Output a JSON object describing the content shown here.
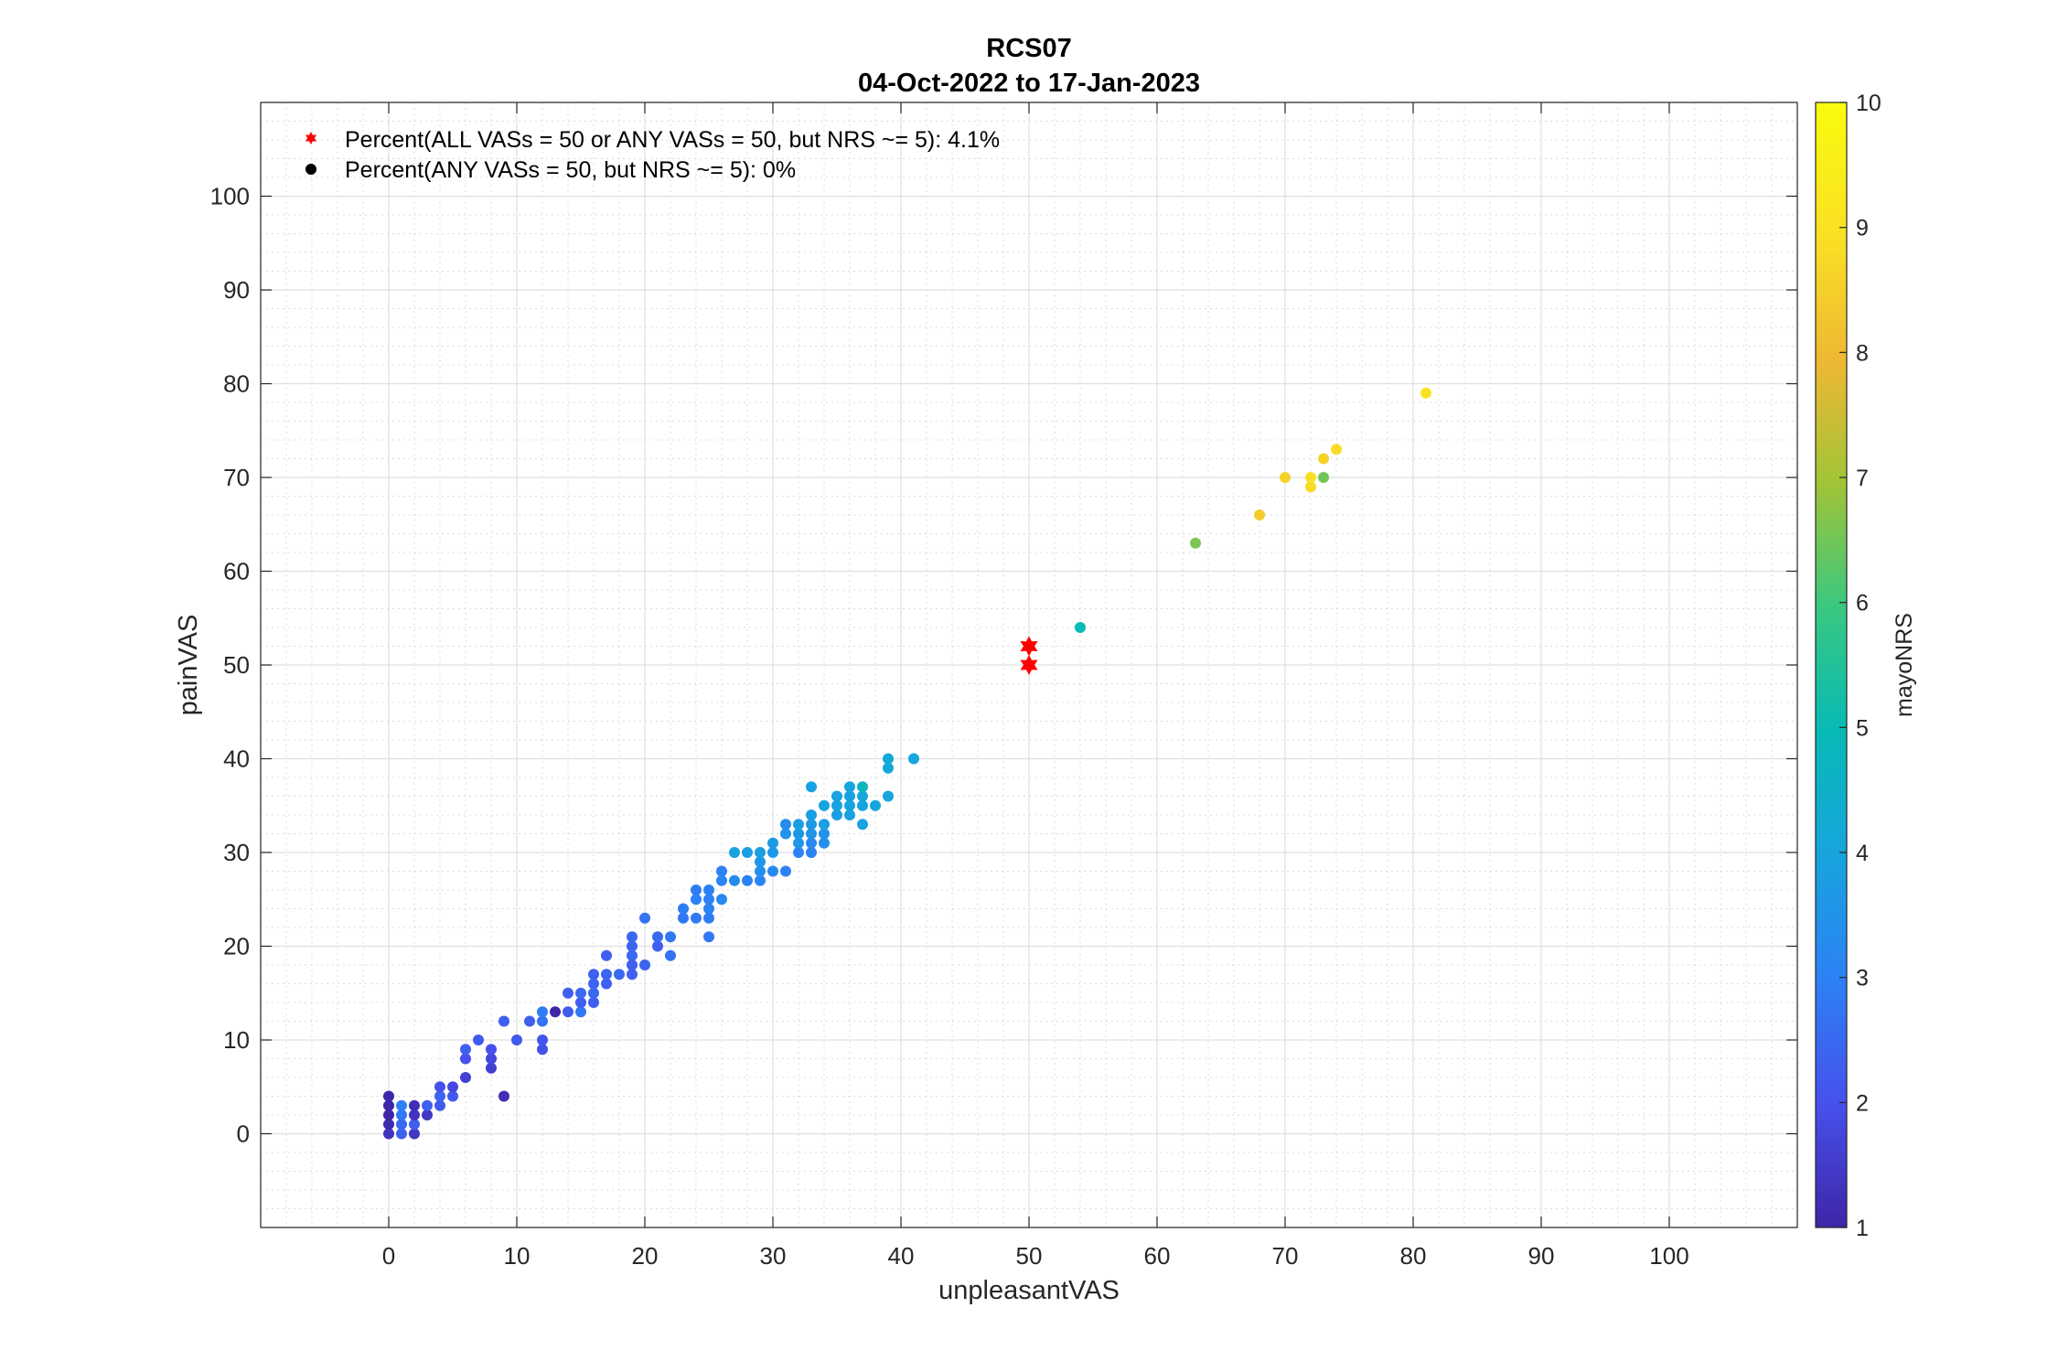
{
  "chart_data": {
    "type": "scatter",
    "title": "RCS07",
    "subtitle": "04-Oct-2022 to 17-Jan-2023",
    "xlabel": "unpleasantVAS",
    "ylabel": "painVAS",
    "xlim": [
      -10,
      110
    ],
    "ylim": [
      -10,
      110
    ],
    "xticks": [
      0,
      10,
      20,
      30,
      40,
      50,
      60,
      70,
      80,
      90,
      100
    ],
    "yticks": [
      0,
      10,
      20,
      30,
      40,
      50,
      60,
      70,
      80,
      90,
      100
    ],
    "grid": true,
    "minor_grid": true,
    "legend_position": "top-left",
    "legend": [
      {
        "label": "Percent(ALL VASs = 50 or ANY VASs = 50, but NRS ~= 5): 4.1%",
        "marker": "star",
        "color": "#ff0000"
      },
      {
        "label": "Percent(ANY VASs = 50, but NRS ~= 5): 0%",
        "marker": "dot",
        "color": "#000000"
      }
    ],
    "colorbar": {
      "label": "mayoNRS",
      "range": [
        1,
        10
      ],
      "ticks": [
        1,
        2,
        3,
        4,
        5,
        6,
        7,
        8,
        9,
        10
      ],
      "colormap": "parula",
      "position": "right"
    },
    "series": [
      {
        "marker": "dot",
        "colored_by": "mayoNRS",
        "points": [
          [
            0,
            0,
            1.3
          ],
          [
            0,
            1,
            1.1
          ],
          [
            0,
            2,
            1.0
          ],
          [
            0,
            3,
            1.0
          ],
          [
            0,
            4,
            1.0
          ],
          [
            1,
            0,
            2.3
          ],
          [
            1,
            1,
            2.5
          ],
          [
            1,
            2,
            2.8
          ],
          [
            1,
            3,
            3.0
          ],
          [
            2,
            0,
            1.4
          ],
          [
            2,
            1,
            2.3
          ],
          [
            2,
            2,
            1.3
          ],
          [
            2,
            3,
            1.2
          ],
          [
            3,
            2,
            1.4
          ],
          [
            3,
            3,
            2.3
          ],
          [
            4,
            3,
            2.2
          ],
          [
            4,
            4,
            2.4
          ],
          [
            4,
            5,
            2.0
          ],
          [
            5,
            4,
            2.2
          ],
          [
            5,
            5,
            1.8
          ],
          [
            6,
            6,
            1.6
          ],
          [
            6,
            8,
            2.0
          ],
          [
            6,
            9,
            2.3
          ],
          [
            7,
            10,
            2.2
          ],
          [
            8,
            7,
            1.6
          ],
          [
            8,
            8,
            1.8
          ],
          [
            8,
            9,
            2.0
          ],
          [
            9,
            4,
            1.2
          ],
          [
            9,
            12,
            2.3
          ],
          [
            10,
            10,
            2.2
          ],
          [
            11,
            12,
            2.3
          ],
          [
            12,
            9,
            2.0
          ],
          [
            12,
            10,
            2.1
          ],
          [
            12,
            12,
            2.7
          ],
          [
            12,
            13,
            2.9
          ],
          [
            13,
            13,
            1.0
          ],
          [
            14,
            13,
            2.2
          ],
          [
            14,
            15,
            2.3
          ],
          [
            15,
            13,
            2.8
          ],
          [
            15,
            14,
            2.3
          ],
          [
            15,
            15,
            2.5
          ],
          [
            16,
            14,
            2.3
          ],
          [
            16,
            15,
            2.5
          ],
          [
            16,
            16,
            2.4
          ],
          [
            16,
            17,
            2.3
          ],
          [
            17,
            16,
            2.3
          ],
          [
            17,
            17,
            2.4
          ],
          [
            17,
            19,
            2.3
          ],
          [
            18,
            17,
            2.5
          ],
          [
            19,
            17,
            2.3
          ],
          [
            19,
            18,
            2.3
          ],
          [
            19,
            19,
            2.5
          ],
          [
            19,
            20,
            2.4
          ],
          [
            19,
            21,
            2.5
          ],
          [
            20,
            18,
            2.4
          ],
          [
            20,
            23,
            2.7
          ],
          [
            21,
            20,
            2.3
          ],
          [
            21,
            21,
            2.5
          ],
          [
            22,
            19,
            2.7
          ],
          [
            22,
            21,
            2.8
          ],
          [
            23,
            23,
            2.8
          ],
          [
            23,
            24,
            2.9
          ],
          [
            24,
            23,
            2.8
          ],
          [
            24,
            25,
            3.0
          ],
          [
            24,
            26,
            2.9
          ],
          [
            25,
            21,
            2.8
          ],
          [
            25,
            23,
            2.9
          ],
          [
            25,
            24,
            3.0
          ],
          [
            25,
            25,
            3.0
          ],
          [
            25,
            26,
            3.0
          ],
          [
            26,
            25,
            3.2
          ],
          [
            26,
            27,
            3.1
          ],
          [
            26,
            28,
            3.0
          ],
          [
            27,
            27,
            3.3
          ],
          [
            27,
            30,
            3.9
          ],
          [
            28,
            27,
            3.0
          ],
          [
            28,
            30,
            3.8
          ],
          [
            29,
            27,
            3.1
          ],
          [
            29,
            28,
            3.4
          ],
          [
            29,
            29,
            3.6
          ],
          [
            29,
            30,
            3.8
          ],
          [
            30,
            28,
            3.2
          ],
          [
            30,
            30,
            3.6
          ],
          [
            30,
            31,
            3.7
          ],
          [
            31,
            28,
            3.0
          ],
          [
            31,
            32,
            3.5
          ],
          [
            31,
            33,
            3.3
          ],
          [
            32,
            30,
            3.0
          ],
          [
            32,
            31,
            3.6
          ],
          [
            32,
            32,
            3.6
          ],
          [
            32,
            33,
            3.8
          ],
          [
            33,
            30,
            3.0
          ],
          [
            33,
            31,
            3.2
          ],
          [
            33,
            32,
            3.5
          ],
          [
            33,
            33,
            3.7
          ],
          [
            33,
            34,
            3.8
          ],
          [
            33,
            37,
            3.9
          ],
          [
            34,
            31,
            3.4
          ],
          [
            34,
            32,
            3.5
          ],
          [
            34,
            33,
            3.8
          ],
          [
            34,
            35,
            3.9
          ],
          [
            35,
            34,
            3.8
          ],
          [
            35,
            35,
            3.9
          ],
          [
            35,
            36,
            3.9
          ],
          [
            36,
            34,
            3.9
          ],
          [
            36,
            35,
            3.9
          ],
          [
            36,
            36,
            3.9
          ],
          [
            36,
            37,
            4.0
          ],
          [
            37,
            33,
            3.9
          ],
          [
            37,
            35,
            3.9
          ],
          [
            37,
            36,
            4.0
          ],
          [
            37,
            37,
            4.8
          ],
          [
            38,
            35,
            4.0
          ],
          [
            39,
            36,
            4.0
          ],
          [
            39,
            39,
            4.1
          ],
          [
            39,
            40,
            4.2
          ],
          [
            41,
            40,
            4.0
          ],
          [
            54,
            54,
            5.0
          ],
          [
            63,
            63,
            6.6
          ],
          [
            68,
            66,
            8.4
          ],
          [
            70,
            70,
            8.6
          ],
          [
            72,
            69,
            8.8
          ],
          [
            72,
            70,
            8.9
          ],
          [
            73,
            70,
            6.5
          ],
          [
            73,
            72,
            8.6
          ],
          [
            74,
            73,
            8.8
          ],
          [
            81,
            79,
            9.0
          ]
        ]
      },
      {
        "marker": "star",
        "color": "#ff0000",
        "points": [
          [
            50,
            50
          ],
          [
            50,
            52
          ]
        ]
      }
    ]
  }
}
